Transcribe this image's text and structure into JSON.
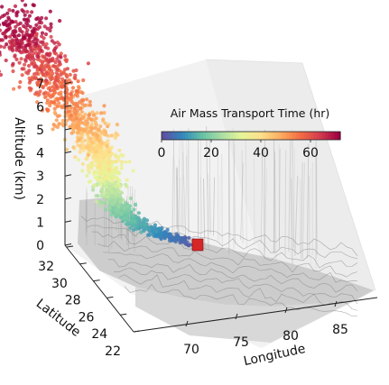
{
  "chart_data": {
    "type": "scatter",
    "title": "",
    "zlabel": "Altitude (km)",
    "ylabel": "Latitude",
    "xlabel": "Longitude",
    "z_ticks": [
      0,
      1,
      2,
      3,
      4,
      5,
      6,
      7
    ],
    "y_ticks": [
      22,
      24,
      26,
      28,
      30,
      32
    ],
    "x_ticks": [
      70,
      75,
      80,
      85
    ],
    "colorbar": {
      "title": "Air Mass Transport Time (hr)",
      "ticks": [
        0,
        20,
        40,
        60
      ],
      "range": [
        0,
        72
      ],
      "colormap": "Spectral_r",
      "colors": [
        "#5e4fa2",
        "#3288bd",
        "#66c2a5",
        "#abdda4",
        "#e6f598",
        "#fee08b",
        "#fdae61",
        "#f46d43",
        "#d53e4f",
        "#9e0142"
      ]
    },
    "trajectory": {
      "description_points": [
        {
          "time_hr": 0,
          "altitude_km": 0.1
        },
        {
          "time_hr": 10,
          "altitude_km": 0.4
        },
        {
          "time_hr": 20,
          "altitude_km": 1.0
        },
        {
          "time_hr": 30,
          "altitude_km": 2.0
        },
        {
          "time_hr": 40,
          "altitude_km": 3.5
        },
        {
          "time_hr": 50,
          "altitude_km": 5.0
        },
        {
          "time_hr": 60,
          "altitude_km": 6.5
        },
        {
          "time_hr": 72,
          "altitude_km": 8.0
        }
      ],
      "source_marker_color": "#d62728"
    },
    "terrain_color": "#bdbdbd",
    "grid": false
  }
}
